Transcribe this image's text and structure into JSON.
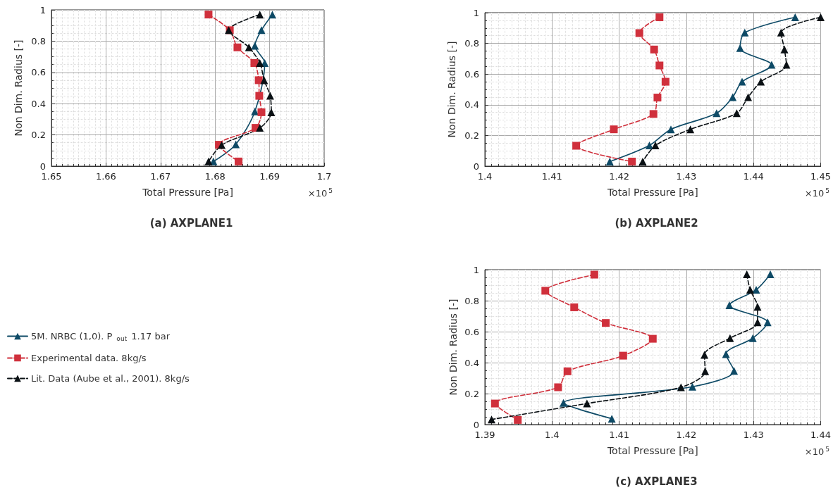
{
  "chart_data": [
    {
      "type": "line",
      "title": "(a) AXPLANE1",
      "xlabel": "Total Pressure [Pa]",
      "ylabel": "Non Dim. Radius [-]",
      "annotations": [
        "×10$^{5}$"
      ],
      "xlim": [
        1.65,
        1.7
      ],
      "xticks": [
        1.65,
        1.66,
        1.67,
        1.68,
        1.69,
        1.7
      ],
      "ylim": [
        0,
        1
      ],
      "yticks": [
        0,
        0.2,
        0.4,
        0.6,
        0.8,
        1
      ],
      "grid": true,
      "legend": false,
      "series": [
        {
          "color": "#0e4a66",
          "marker": "triangle",
          "line_style": "solid",
          "x": [
            1.6905,
            1.6885,
            1.6873,
            1.6891,
            null,
            null,
            1.6873,
            null,
            1.6838,
            1.6797
          ],
          "values": [
            0.97,
            0.87,
            0.77,
            0.66,
            null,
            null,
            0.35,
            null,
            0.14,
            0.03
          ]
        },
        {
          "color": "#d0303c",
          "marker": "square",
          "line_style": "dashed",
          "x": [
            1.6788,
            1.6827,
            1.6841,
            1.6872,
            1.688,
            1.6881,
            1.6885,
            1.6874,
            1.6807,
            1.6843
          ],
          "values": [
            0.97,
            0.87,
            0.76,
            0.66,
            0.55,
            0.45,
            0.345,
            0.245,
            0.137,
            0.03
          ]
        },
        {
          "color": "#0a1014",
          "marker": "triangle",
          "line_style": "dashed",
          "x": [
            1.6882,
            1.6825,
            1.6862,
            1.6882,
            1.689,
            1.6901,
            1.6903,
            1.6882,
            1.6812,
            1.6788
          ],
          "values": [
            0.97,
            0.87,
            0.76,
            0.66,
            0.55,
            0.45,
            0.345,
            0.245,
            0.135,
            0.03
          ]
        }
      ]
    },
    {
      "type": "line",
      "title": "(b) AXPLANE2",
      "xlabel": "Total Pressure [Pa]",
      "ylabel": "Non Dim. Radius [-]",
      "annotations": [
        "×10$^{5}$"
      ],
      "xlim": [
        1.4,
        1.45
      ],
      "xticks": [
        1.4,
        1.41,
        1.42,
        1.43,
        1.44,
        1.45
      ],
      "ylim": [
        0,
        1
      ],
      "yticks": [
        0,
        0.2,
        0.4,
        0.6,
        0.8,
        1
      ],
      "grid": true,
      "legend": false,
      "series": [
        {
          "color": "#0e4a66",
          "marker": "triangle",
          "line_style": "solid",
          "x": [
            1.4462,
            1.4387,
            1.438,
            1.4427,
            1.4383,
            1.4369,
            1.4345,
            1.4277,
            1.4245,
            1.4186
          ],
          "values": [
            0.97,
            0.87,
            0.77,
            0.66,
            0.55,
            0.45,
            0.345,
            0.24,
            0.135,
            0.03
          ]
        },
        {
          "color": "#d0303c",
          "marker": "square",
          "line_style": "dashed",
          "x": [
            1.426,
            1.423,
            1.4252,
            1.426,
            1.4269,
            1.4257,
            1.4251,
            1.4192,
            1.4136,
            1.4219
          ],
          "values": [
            0.97,
            0.867,
            0.76,
            0.656,
            0.55,
            0.447,
            0.34,
            0.24,
            0.133,
            0.03
          ]
        },
        {
          "color": "#0a1014",
          "marker": "triangle",
          "line_style": "dashed",
          "x": [
            1.45,
            1.4441,
            1.4446,
            1.4449,
            1.4411,
            1.4392,
            1.4375,
            1.4306,
            1.4254,
            1.4235
          ],
          "values": [
            0.97,
            0.87,
            0.76,
            0.66,
            0.55,
            0.45,
            0.345,
            0.24,
            0.135,
            0.03
          ]
        }
      ]
    },
    {
      "type": "line",
      "title": "(c) AXPLANE3",
      "xlabel": "Total Pressure [Pa]",
      "ylabel": "Non Dim. Radius [-]",
      "annotations": [
        "×10$^{5}$"
      ],
      "xlim": [
        1.39,
        1.44
      ],
      "xticks": [
        1.39,
        1.4,
        1.41,
        1.42,
        1.43,
        1.44
      ],
      "ylim": [
        0,
        1
      ],
      "yticks": [
        0,
        0.2,
        0.4,
        0.6,
        0.8,
        1
      ],
      "grid": true,
      "legend": "left",
      "series": [
        {
          "name": "5M. NRBC (1,0). P$_{out}$ 1.17 bar",
          "color": "#0e4a66",
          "marker": "triangle",
          "line_style": "solid",
          "x": [
            1.4325,
            1.4304,
            1.4264,
            1.4321,
            1.4299,
            1.4259,
            1.4271,
            1.4209,
            1.4017,
            1.4089
          ],
          "values": [
            0.97,
            0.87,
            0.77,
            0.66,
            0.558,
            0.455,
            0.347,
            0.244,
            0.14,
            0.038
          ]
        },
        {
          "name": "Experimental data. 8kg/s",
          "color": "#d0303c",
          "marker": "square",
          "line_style": "dashed",
          "x": [
            1.4063,
            1.399,
            1.4033,
            1.408,
            1.415,
            1.4106,
            1.4023,
            1.4009,
            1.3915,
            1.3949
          ],
          "values": [
            0.968,
            0.864,
            0.757,
            0.656,
            0.554,
            0.445,
            0.344,
            0.241,
            0.136,
            0.03
          ]
        },
        {
          "name": "Lit. Data (Aube et al., 2001). 8kg/s",
          "color": "#0a1014",
          "marker": "triangle",
          "line_style": "dashed",
          "x": [
            1.429,
            1.4295,
            1.4306,
            1.4306,
            1.4265,
            1.4227,
            1.4228,
            1.4192,
            1.4052,
            1.391
          ],
          "values": [
            0.97,
            0.87,
            0.76,
            0.66,
            0.558,
            0.45,
            0.344,
            0.241,
            0.136,
            0.033
          ]
        }
      ]
    }
  ]
}
